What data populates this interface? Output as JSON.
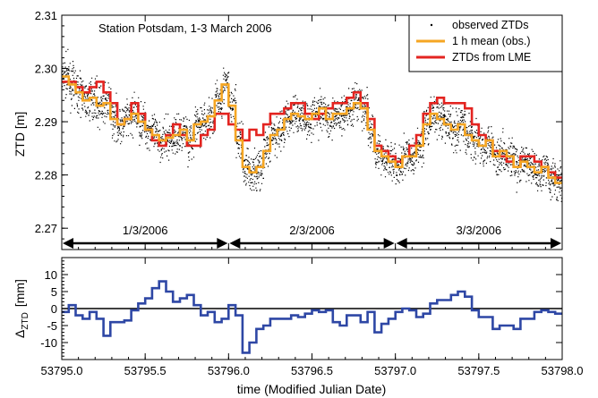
{
  "chart_data": [
    {
      "type": "line",
      "ylabel": "ZTD [m]",
      "ylim": [
        2.266,
        2.31
      ],
      "xlim": [
        53795.0,
        53798.0
      ],
      "yticks": [
        "2.27",
        "2.28",
        "2.29",
        "2.30",
        "2.31"
      ],
      "annotation": "Station Potsdam, 1-3 March 2006",
      "day_labels": [
        "1/3/2006",
        "2/3/2006",
        "3/3/2006"
      ],
      "day_boundaries": [
        53795.0,
        53796.0,
        53797.0,
        53798.0
      ],
      "legend": {
        "position": "top-right",
        "entries": [
          "observed ZTDs",
          "1 h mean (obs.)",
          "ZTDs from LME"
        ]
      },
      "colors": {
        "observed": "#000000",
        "hourly_mean": "#f5a623",
        "lme": "#e32420"
      },
      "step_x": 0.0416667,
      "series": [
        {
          "name": "1 h mean (obs.)",
          "x0": 53795.0,
          "values": [
            2.2985,
            2.297,
            2.2955,
            2.294,
            2.2945,
            2.293,
            2.2935,
            2.2905,
            2.2895,
            2.2905,
            2.2915,
            2.29,
            2.2885,
            2.2875,
            2.2865,
            2.287,
            2.2875,
            2.2885,
            2.2865,
            2.2895,
            2.29,
            2.291,
            2.294,
            2.297,
            2.293,
            2.2865,
            2.2815,
            2.2805,
            2.2815,
            2.2845,
            2.2875,
            2.2885,
            2.2905,
            2.2915,
            2.291,
            2.2905,
            2.2915,
            2.2925,
            2.2905,
            2.2915,
            2.2915,
            2.2925,
            2.2935,
            2.2925,
            2.2885,
            2.2845,
            2.2835,
            2.2825,
            2.2815,
            2.2835,
            2.2835,
            2.2855,
            2.2895,
            2.2915,
            2.2905,
            2.2895,
            2.2885,
            2.2895,
            2.2875,
            2.2865,
            2.2855,
            2.2865,
            2.2835,
            2.2845,
            2.2835,
            2.2815,
            2.2825,
            2.2815,
            2.2805,
            2.2815,
            2.2795,
            2.2785
          ]
        },
        {
          "name": "ZTDs from LME",
          "x0": 53795.0,
          "values": [
            2.2975,
            2.2975,
            2.2965,
            2.2955,
            2.2965,
            2.2975,
            2.2955,
            2.2935,
            2.2895,
            2.2905,
            2.2935,
            2.2915,
            2.2885,
            2.2865,
            2.2855,
            2.2875,
            2.2895,
            2.2875,
            2.2855,
            2.2855,
            2.2875,
            2.2885,
            2.2915,
            2.2915,
            2.2895,
            2.2885,
            2.2865,
            2.2885,
            2.2875,
            2.2895,
            2.2915,
            2.2915,
            2.2925,
            2.2935,
            2.2935,
            2.2915,
            2.2905,
            2.2915,
            2.2925,
            2.2935,
            2.2935,
            2.2945,
            2.2955,
            2.2935,
            2.2905,
            2.2855,
            2.2845,
            2.2835,
            2.2825,
            2.2835,
            2.2855,
            2.2875,
            2.2915,
            2.2935,
            2.2945,
            2.2935,
            2.2935,
            2.2935,
            2.2925,
            2.2895,
            2.2875,
            2.2865,
            2.2845,
            2.2835,
            2.2825,
            2.2815,
            2.2835,
            2.2835,
            2.2825,
            2.2815,
            2.2805,
            2.2795
          ]
        }
      ]
    },
    {
      "type": "line",
      "xlabel": "time (Modified Julian Date)",
      "ylabel_main": "Δ",
      "ylabel_sub": "ZTD",
      "ylabel_unit": "[mm]",
      "ylim": [
        -15,
        15
      ],
      "yticks": [
        "-10",
        "-5",
        "0",
        "5",
        "10"
      ],
      "xlim": [
        53795.0,
        53798.0
      ],
      "xticks": [
        "53795.0",
        "53795.5",
        "53796.0",
        "53796.5",
        "53797.0",
        "53797.5",
        "53798.0"
      ],
      "step_x": 0.0416667,
      "color": "#2e47a5",
      "series": [
        {
          "name": "Δ ZTD",
          "x0": 53795.0,
          "values": [
            -1,
            1,
            -2,
            -3,
            -1,
            -3,
            -8,
            -4,
            -4,
            -3.5,
            -0.5,
            1.5,
            3,
            6,
            8,
            5,
            2,
            3,
            4,
            1,
            -2,
            -1,
            -4,
            -3,
            1,
            -2,
            -13,
            -10,
            -6,
            -5,
            -3,
            -3,
            -3,
            -2,
            -2.5,
            -1.5,
            -0.5,
            -1,
            -0.5,
            -4,
            -5,
            -2,
            -2,
            -4,
            -1,
            -7,
            -4.5,
            -3,
            -1,
            0,
            -0.5,
            -2.5,
            -1.5,
            1.5,
            2.5,
            2.5,
            4,
            5,
            3.5,
            -0.5,
            -2.5,
            -2.5,
            -6,
            -5,
            -5,
            -6,
            -3,
            -3,
            -1,
            -0.5,
            -1,
            -1.5
          ]
        }
      ]
    }
  ]
}
